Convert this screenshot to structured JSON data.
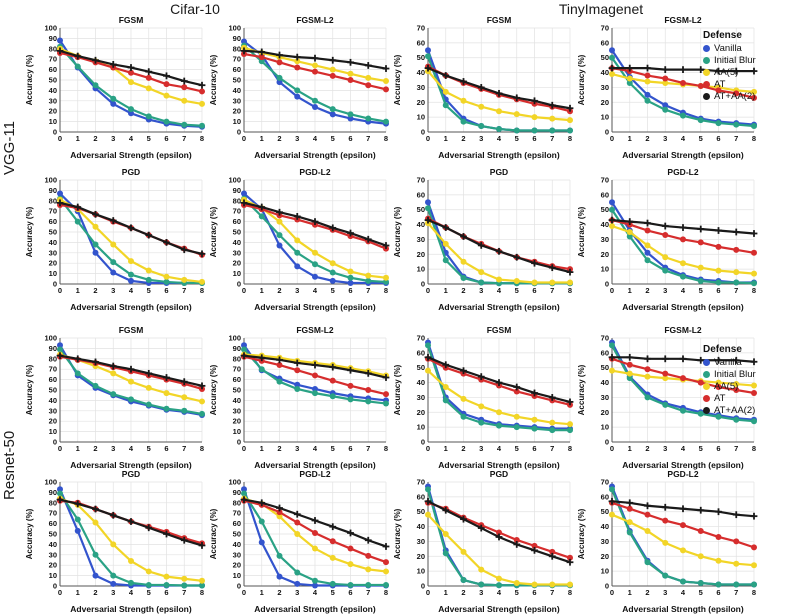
{
  "figure": {
    "col_groups": [
      "Cifar-10",
      "TinyImagenet"
    ],
    "row_groups": [
      "VGG-11",
      "Resnet-50"
    ],
    "legend": {
      "title": "Defense",
      "items": [
        {
          "label": "Vanilla",
          "color": "#3354cd"
        },
        {
          "label": "Initial Blur",
          "color": "#2aa285"
        },
        {
          "label": "AA(5)",
          "color": "#f2d527"
        },
        {
          "label": "AT",
          "color": "#d62d2d"
        },
        {
          "label": "AT+AA(2)",
          "color": "#1a1a1a"
        }
      ]
    }
  },
  "chart_data": {
    "type": "line",
    "x": [
      0,
      1,
      2,
      3,
      4,
      5,
      6,
      7,
      8
    ],
    "xlabel": "Adversarial Strength (epsilon)",
    "ylabel": "Accuracy (%)",
    "grid": true,
    "legend_position": "right",
    "series_names": [
      "Vanilla",
      "Initial Blur",
      "AA(5)",
      "AT",
      "AT+AA(2)"
    ],
    "series_colors": [
      "#3354cd",
      "#2aa285",
      "#f2d527",
      "#d62d2d",
      "#1a1a1a"
    ],
    "series_markers": [
      "circle",
      "circle",
      "circle",
      "circle",
      "plus"
    ],
    "plots": [
      {
        "row_group": "VGG-11",
        "col_group": "Cifar-10",
        "title": "FGSM",
        "ylim": [
          0,
          100
        ],
        "values": [
          [
            88,
            62,
            42,
            27,
            18,
            12,
            8,
            6,
            5
          ],
          [
            82,
            63,
            45,
            32,
            22,
            15,
            10,
            7,
            6
          ],
          [
            80,
            73,
            68,
            62,
            48,
            42,
            35,
            30,
            27
          ],
          [
            76,
            72,
            67,
            62,
            57,
            52,
            46,
            43,
            39
          ],
          [
            78,
            73,
            69,
            65,
            62,
            58,
            54,
            49,
            45
          ]
        ]
      },
      {
        "row_group": "VGG-11",
        "col_group": "Cifar-10",
        "title": "FGSM-L2",
        "ylim": [
          0,
          100
        ],
        "values": [
          [
            87,
            74,
            48,
            34,
            24,
            17,
            13,
            10,
            8
          ],
          [
            83,
            68,
            52,
            40,
            30,
            22,
            17,
            13,
            10
          ],
          [
            81,
            76,
            72,
            68,
            64,
            60,
            56,
            52,
            49
          ],
          [
            75,
            72,
            67,
            62,
            58,
            54,
            50,
            45,
            41
          ],
          [
            78,
            77,
            74,
            72,
            71,
            69,
            67,
            64,
            61
          ]
        ]
      },
      {
        "row_group": "VGG-11",
        "col_group": "TinyImagenet",
        "title": "FGSM",
        "ylim": [
          0,
          70
        ],
        "values": [
          [
            55,
            22,
            9,
            4,
            2,
            1,
            1,
            1,
            1
          ],
          [
            51,
            18,
            7,
            4,
            2,
            1,
            1,
            1,
            1
          ],
          [
            41,
            27,
            21,
            17,
            14,
            12,
            10,
            9,
            8
          ],
          [
            44,
            38,
            33,
            29,
            25,
            22,
            19,
            17,
            14
          ],
          [
            43,
            38,
            34,
            30,
            26,
            23,
            21,
            18,
            16
          ]
        ]
      },
      {
        "row_group": "VGG-11",
        "col_group": "TinyImagenet",
        "title": "FGSM-L2",
        "ylim": [
          0,
          70
        ],
        "values": [
          [
            55,
            37,
            25,
            18,
            13,
            9,
            7,
            6,
            5
          ],
          [
            50,
            33,
            21,
            15,
            11,
            8,
            6,
            5,
            4
          ],
          [
            39,
            36,
            34,
            33,
            32,
            31,
            30,
            28,
            27
          ],
          [
            43,
            41,
            38,
            36,
            33,
            31,
            28,
            26,
            23
          ],
          [
            43,
            43,
            43,
            42,
            42,
            42,
            41,
            41,
            41
          ]
        ]
      },
      {
        "row_group": "VGG-11",
        "col_group": "Cifar-10",
        "title": "PGD",
        "ylim": [
          0,
          100
        ],
        "values": [
          [
            87,
            70,
            30,
            11,
            3,
            1,
            1,
            1,
            1
          ],
          [
            82,
            60,
            38,
            21,
            9,
            4,
            2,
            1,
            1
          ],
          [
            81,
            72,
            55,
            38,
            22,
            13,
            7,
            4,
            2
          ],
          [
            76,
            73,
            67,
            60,
            54,
            47,
            40,
            34,
            28
          ],
          [
            78,
            74,
            67,
            61,
            54,
            47,
            40,
            33,
            29
          ]
        ]
      },
      {
        "row_group": "VGG-11",
        "col_group": "Cifar-10",
        "title": "PGD-L2",
        "ylim": [
          0,
          100
        ],
        "values": [
          [
            87,
            72,
            37,
            17,
            7,
            3,
            1,
            1,
            1
          ],
          [
            82,
            65,
            47,
            30,
            19,
            11,
            6,
            3,
            2
          ],
          [
            81,
            73,
            60,
            42,
            30,
            20,
            12,
            8,
            6
          ],
          [
            76,
            72,
            66,
            62,
            57,
            52,
            46,
            41,
            34
          ],
          [
            78,
            74,
            69,
            65,
            60,
            54,
            49,
            43,
            37
          ]
        ]
      },
      {
        "row_group": "VGG-11",
        "col_group": "TinyImagenet",
        "title": "PGD",
        "ylim": [
          0,
          70
        ],
        "values": [
          [
            55,
            21,
            5,
            1,
            0.5,
            0.5,
            0.5,
            0.5,
            0.5
          ],
          [
            51,
            16,
            4,
            1,
            0.5,
            0.5,
            0.5,
            0.5,
            0.5
          ],
          [
            41,
            27,
            15,
            8,
            3,
            2,
            1,
            1,
            1
          ],
          [
            44,
            38,
            32,
            27,
            22,
            18,
            15,
            12,
            10
          ],
          [
            43,
            38,
            32,
            26,
            22,
            18,
            14,
            11,
            8
          ]
        ]
      },
      {
        "row_group": "VGG-11",
        "col_group": "TinyImagenet",
        "title": "PGD-L2",
        "ylim": [
          0,
          70
        ],
        "values": [
          [
            55,
            36,
            21,
            11,
            6,
            3,
            2,
            1,
            1
          ],
          [
            50,
            32,
            16,
            9,
            5,
            2,
            1,
            1,
            0.5
          ],
          [
            39,
            35,
            26,
            18,
            14,
            11,
            9,
            8,
            7
          ],
          [
            43,
            40,
            36,
            33,
            30,
            28,
            25,
            23,
            21
          ],
          [
            43,
            42,
            41,
            39,
            38,
            37,
            36,
            35,
            34
          ]
        ]
      },
      {
        "row_group": "Resnet-50",
        "col_group": "Cifar-10",
        "title": "FGSM",
        "ylim": [
          0,
          100
        ],
        "values": [
          [
            93,
            64,
            52,
            45,
            39,
            35,
            31,
            29,
            26
          ],
          [
            89,
            66,
            54,
            46,
            41,
            36,
            32,
            30,
            27
          ],
          [
            84,
            79,
            73,
            66,
            58,
            52,
            47,
            43,
            39
          ],
          [
            82,
            79,
            76,
            72,
            68,
            64,
            60,
            56,
            51
          ],
          [
            83,
            80,
            77,
            73,
            70,
            66,
            62,
            58,
            54
          ]
        ]
      },
      {
        "row_group": "Resnet-50",
        "col_group": "Cifar-10",
        "title": "FGSM-L2",
        "ylim": [
          0,
          100
        ],
        "values": [
          [
            93,
            69,
            61,
            55,
            51,
            47,
            44,
            42,
            40
          ],
          [
            89,
            70,
            58,
            51,
            47,
            44,
            41,
            39,
            37
          ],
          [
            84,
            83,
            81,
            78,
            76,
            74,
            71,
            68,
            64
          ],
          [
            82,
            78,
            74,
            69,
            64,
            59,
            54,
            50,
            46
          ],
          [
            83,
            81,
            79,
            76,
            74,
            72,
            69,
            66,
            62
          ]
        ]
      },
      {
        "row_group": "Resnet-50",
        "col_group": "TinyImagenet",
        "title": "FGSM",
        "ylim": [
          0,
          70
        ],
        "values": [
          [
            67,
            30,
            19,
            15,
            12,
            11,
            10,
            9,
            9
          ],
          [
            65,
            28,
            17,
            13,
            11,
            10,
            9,
            8,
            8
          ],
          [
            48,
            37,
            29,
            24,
            20,
            17,
            15,
            13,
            12
          ],
          [
            56,
            50,
            46,
            42,
            38,
            34,
            31,
            28,
            25
          ],
          [
            57,
            52,
            48,
            44,
            40,
            37,
            33,
            30,
            27
          ]
        ]
      },
      {
        "row_group": "Resnet-50",
        "col_group": "TinyImagenet",
        "title": "FGSM-L2",
        "ylim": [
          0,
          70
        ],
        "values": [
          [
            67,
            44,
            32,
            26,
            23,
            20,
            18,
            16,
            15
          ],
          [
            65,
            43,
            30,
            25,
            21,
            19,
            17,
            15,
            14
          ],
          [
            48,
            46,
            44,
            43,
            42,
            41,
            40,
            39,
            38
          ],
          [
            56,
            52,
            49,
            46,
            43,
            40,
            37,
            35,
            33
          ],
          [
            57,
            57,
            56,
            56,
            56,
            55,
            55,
            55,
            54
          ]
        ]
      },
      {
        "row_group": "Resnet-50",
        "col_group": "Cifar-10",
        "title": "PGD",
        "ylim": [
          0,
          100
        ],
        "values": [
          [
            93,
            53,
            10,
            2,
            0.5,
            0.5,
            0.5,
            0.5,
            0.5
          ],
          [
            89,
            64,
            30,
            10,
            3,
            1,
            1,
            0.5,
            0.5
          ],
          [
            84,
            78,
            61,
            40,
            24,
            14,
            9,
            7,
            5
          ],
          [
            82,
            80,
            74,
            68,
            62,
            57,
            52,
            46,
            41
          ],
          [
            83,
            79,
            74,
            68,
            62,
            56,
            50,
            44,
            39
          ]
        ]
      },
      {
        "row_group": "Resnet-50",
        "col_group": "Cifar-10",
        "title": "PGD-L2",
        "ylim": [
          0,
          100
        ],
        "values": [
          [
            93,
            42,
            9,
            2,
            0.5,
            0.5,
            0.5,
            0.5,
            0.5
          ],
          [
            89,
            62,
            29,
            13,
            5,
            2,
            1,
            1,
            1
          ],
          [
            84,
            79,
            67,
            50,
            36,
            27,
            21,
            16,
            14
          ],
          [
            82,
            78,
            71,
            61,
            51,
            43,
            36,
            29,
            23
          ],
          [
            83,
            80,
            75,
            69,
            63,
            57,
            51,
            44,
            38
          ]
        ]
      },
      {
        "row_group": "Resnet-50",
        "col_group": "TinyImagenet",
        "title": "PGD",
        "ylim": [
          0,
          70
        ],
        "values": [
          [
            67,
            24,
            4,
            1,
            0.5,
            0.5,
            0.5,
            0.5,
            0.5
          ],
          [
            65,
            22,
            4,
            1,
            0.5,
            0.5,
            0.5,
            0.5,
            0.5
          ],
          [
            48,
            35,
            23,
            11,
            5,
            2,
            1,
            1,
            1
          ],
          [
            56,
            52,
            46,
            41,
            36,
            31,
            27,
            23,
            19
          ],
          [
            57,
            51,
            45,
            39,
            33,
            28,
            24,
            20,
            16
          ]
        ]
      },
      {
        "row_group": "Resnet-50",
        "col_group": "TinyImagenet",
        "title": "PGD-L2",
        "ylim": [
          0,
          70
        ],
        "values": [
          [
            67,
            37,
            17,
            7,
            3,
            2,
            1,
            1,
            1
          ],
          [
            65,
            36,
            16,
            7,
            3,
            2,
            1,
            1,
            1
          ],
          [
            48,
            43,
            37,
            29,
            24,
            20,
            17,
            15,
            14
          ],
          [
            56,
            52,
            48,
            44,
            41,
            37,
            33,
            30,
            26
          ],
          [
            57,
            56,
            54,
            53,
            52,
            51,
            50,
            48,
            47
          ]
        ]
      }
    ]
  }
}
